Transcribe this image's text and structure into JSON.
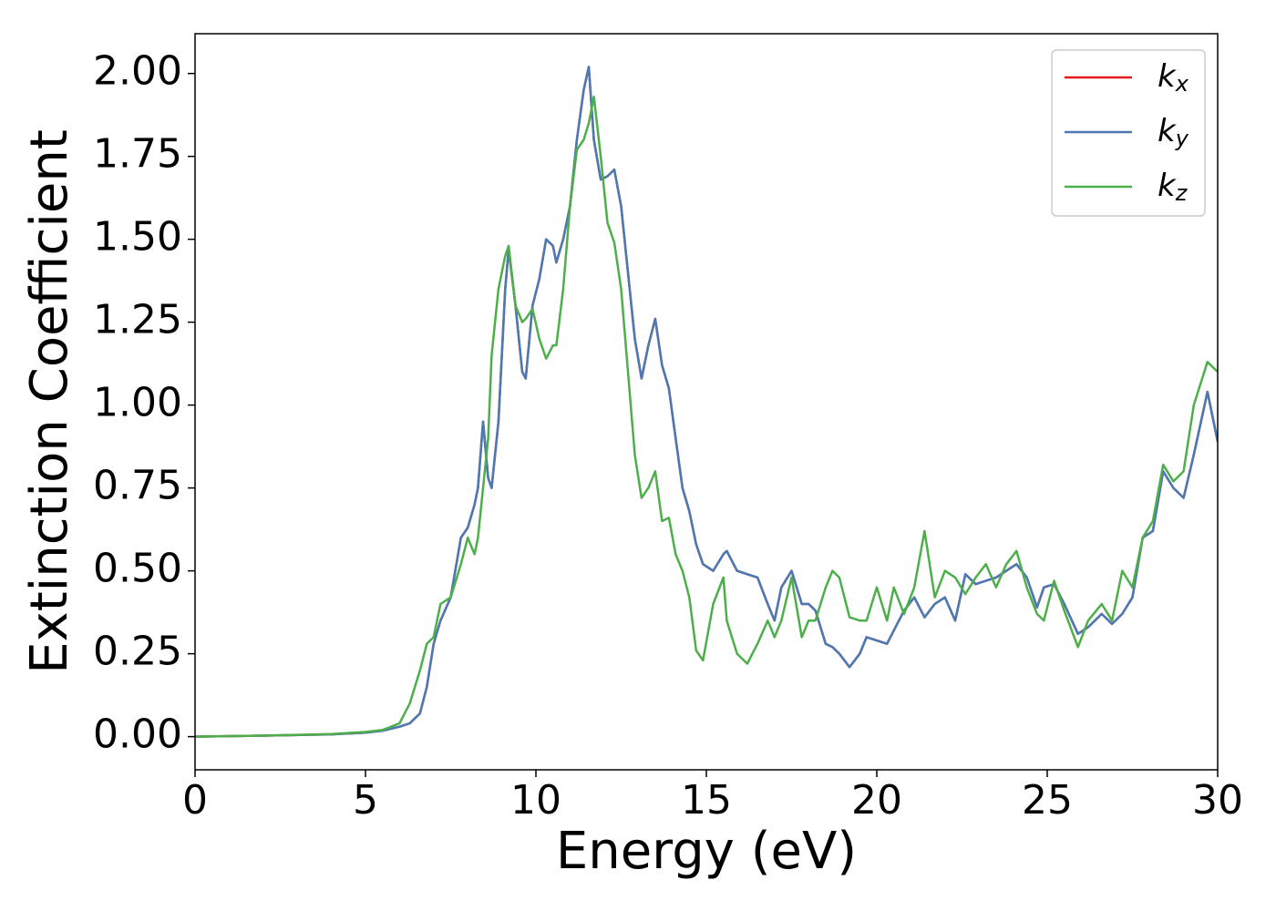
{
  "chart_data": {
    "type": "line",
    "x_label": "Energy (eV)",
    "y_label": "Extinction Coefficient",
    "xlim": [
      0,
      30
    ],
    "ylim": [
      -0.1,
      2.12
    ],
    "xticks": [
      0,
      5,
      10,
      15,
      20,
      25,
      30
    ],
    "yticks": [
      {
        "value": 0,
        "label": "0.00"
      },
      {
        "value": 0.25,
        "label": "0.25"
      },
      {
        "value": 0.5,
        "label": "0.50"
      },
      {
        "value": 0.75,
        "label": "0.75"
      },
      {
        "value": 1,
        "label": "1.00"
      },
      {
        "value": 1.25,
        "label": "1.25"
      },
      {
        "value": 1.5,
        "label": "1.50"
      },
      {
        "value": 1.75,
        "label": "1.75"
      },
      {
        "value": 2,
        "label": "2.00"
      }
    ],
    "legend": "upper right",
    "x": [
      0,
      2,
      4,
      5,
      5.5,
      6,
      6.3,
      6.6,
      6.8,
      7,
      7.2,
      7.5,
      7.8,
      8.0,
      8.2,
      8.3,
      8.45,
      8.6,
      8.7,
      8.9,
      9.1,
      9.2,
      9.4,
      9.6,
      9.7,
      9.9,
      10.1,
      10.3,
      10.5,
      10.6,
      10.8,
      11.0,
      11.2,
      11.4,
      11.55,
      11.7,
      11.9,
      12.1,
      12.3,
      12.5,
      12.7,
      12.9,
      13.1,
      13.3,
      13.5,
      13.7,
      13.9,
      14.1,
      14.3,
      14.5,
      14.7,
      14.9,
      15.2,
      15.5,
      15.6,
      15.9,
      16.2,
      16.5,
      16.8,
      17.0,
      17.2,
      17.5,
      17.8,
      18.0,
      18.2,
      18.5,
      18.7,
      18.9,
      19.2,
      19.5,
      19.7,
      20.0,
      20.3,
      20.5,
      20.8,
      21.1,
      21.4,
      21.7,
      22.0,
      22.3,
      22.6,
      22.9,
      23.2,
      23.5,
      23.8,
      24.1,
      24.4,
      24.7,
      24.9,
      25.2,
      25.5,
      25.9,
      26.2,
      26.6,
      26.9,
      27.2,
      27.5,
      27.8,
      28.1,
      28.4,
      28.7,
      29.0,
      29.3,
      29.7,
      30.0
    ],
    "series": [
      {
        "name": "kx",
        "color": "#e41a1c",
        "values": [
          0,
          0.003,
          0.007,
          0.012,
          0.018,
          0.03,
          0.04,
          0.07,
          0.15,
          0.28,
          0.35,
          0.42,
          0.6,
          0.63,
          0.7,
          0.75,
          0.95,
          0.78,
          0.75,
          0.95,
          1.35,
          1.47,
          1.3,
          1.1,
          1.08,
          1.3,
          1.38,
          1.5,
          1.48,
          1.43,
          1.5,
          1.6,
          1.8,
          1.95,
          2.02,
          1.8,
          1.68,
          1.69,
          1.71,
          1.6,
          1.4,
          1.2,
          1.08,
          1.18,
          1.26,
          1.12,
          1.05,
          0.9,
          0.75,
          0.68,
          0.58,
          0.52,
          0.5,
          0.55,
          0.56,
          0.5,
          0.49,
          0.48,
          0.4,
          0.35,
          0.45,
          0.5,
          0.4,
          0.4,
          0.38,
          0.28,
          0.27,
          0.25,
          0.21,
          0.25,
          0.3,
          0.29,
          0.28,
          0.32,
          0.38,
          0.42,
          0.36,
          0.4,
          0.42,
          0.35,
          0.49,
          0.46,
          0.47,
          0.48,
          0.5,
          0.52,
          0.48,
          0.39,
          0.45,
          0.46,
          0.4,
          0.31,
          0.33,
          0.37,
          0.34,
          0.37,
          0.42,
          0.6,
          0.62,
          0.8,
          0.75,
          0.72,
          0.85,
          1.04,
          0.89
        ]
      },
      {
        "name": "ky",
        "color": "#4a7ab5",
        "values": [
          0,
          0.003,
          0.007,
          0.012,
          0.018,
          0.03,
          0.04,
          0.07,
          0.15,
          0.28,
          0.35,
          0.42,
          0.6,
          0.63,
          0.7,
          0.75,
          0.95,
          0.78,
          0.75,
          0.95,
          1.35,
          1.47,
          1.3,
          1.1,
          1.08,
          1.3,
          1.38,
          1.5,
          1.48,
          1.43,
          1.5,
          1.6,
          1.8,
          1.95,
          2.02,
          1.8,
          1.68,
          1.69,
          1.71,
          1.6,
          1.4,
          1.2,
          1.08,
          1.18,
          1.26,
          1.12,
          1.05,
          0.9,
          0.75,
          0.68,
          0.58,
          0.52,
          0.5,
          0.55,
          0.56,
          0.5,
          0.49,
          0.48,
          0.4,
          0.35,
          0.45,
          0.5,
          0.4,
          0.4,
          0.38,
          0.28,
          0.27,
          0.25,
          0.21,
          0.25,
          0.3,
          0.29,
          0.28,
          0.32,
          0.38,
          0.42,
          0.36,
          0.4,
          0.42,
          0.35,
          0.49,
          0.46,
          0.47,
          0.48,
          0.5,
          0.52,
          0.48,
          0.39,
          0.45,
          0.46,
          0.4,
          0.31,
          0.33,
          0.37,
          0.34,
          0.37,
          0.42,
          0.6,
          0.62,
          0.8,
          0.75,
          0.72,
          0.85,
          1.04,
          0.89
        ]
      },
      {
        "name": "kz",
        "color": "#4daf4a",
        "values": [
          0,
          0.003,
          0.008,
          0.014,
          0.02,
          0.04,
          0.1,
          0.2,
          0.28,
          0.3,
          0.4,
          0.42,
          0.52,
          0.6,
          0.55,
          0.6,
          0.75,
          0.9,
          1.15,
          1.35,
          1.45,
          1.48,
          1.3,
          1.25,
          1.26,
          1.29,
          1.2,
          1.14,
          1.18,
          1.18,
          1.35,
          1.6,
          1.77,
          1.8,
          1.85,
          1.93,
          1.75,
          1.55,
          1.49,
          1.35,
          1.1,
          0.85,
          0.72,
          0.75,
          0.8,
          0.65,
          0.66,
          0.55,
          0.5,
          0.42,
          0.26,
          0.23,
          0.4,
          0.48,
          0.35,
          0.25,
          0.22,
          0.28,
          0.35,
          0.3,
          0.35,
          0.48,
          0.3,
          0.35,
          0.35,
          0.45,
          0.5,
          0.48,
          0.36,
          0.35,
          0.35,
          0.45,
          0.35,
          0.45,
          0.37,
          0.45,
          0.62,
          0.42,
          0.5,
          0.48,
          0.43,
          0.48,
          0.52,
          0.45,
          0.52,
          0.56,
          0.45,
          0.37,
          0.35,
          0.47,
          0.38,
          0.27,
          0.35,
          0.4,
          0.35,
          0.5,
          0.45,
          0.6,
          0.65,
          0.82,
          0.77,
          0.8,
          1.0,
          1.13,
          1.1
        ]
      }
    ]
  }
}
